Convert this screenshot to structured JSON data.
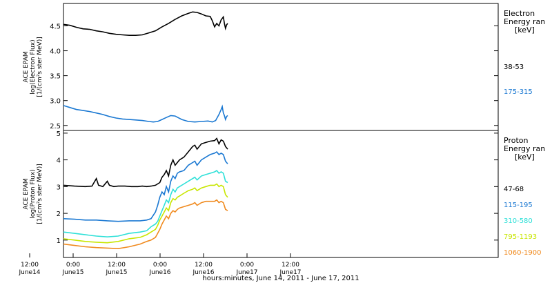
{
  "chart_data": [
    {
      "type": "line",
      "panel": "electron",
      "ylabel": [
        "ACE EPAM",
        "log(Electron Flux)",
        "[1/(cm²s ster MeV)]"
      ],
      "ylim": [
        2.4,
        4.95
      ],
      "yticks": [
        "4.5",
        "4.0",
        "3.5",
        "3.0",
        "2.5"
      ],
      "legend_title": [
        "Electron",
        "Energy ran",
        "[keV]"
      ],
      "series": [
        {
          "name": "38-53",
          "color": "#000000",
          "points": [
            [
              0,
              4.53
            ],
            [
              6,
              4.51
            ],
            [
              12,
              4.47
            ],
            [
              18,
              4.44
            ],
            [
              24,
              4.43
            ],
            [
              30,
              4.4
            ],
            [
              36,
              4.38
            ],
            [
              42,
              4.35
            ],
            [
              48,
              4.33
            ],
            [
              54,
              4.32
            ],
            [
              60,
              4.31
            ],
            [
              66,
              4.31
            ],
            [
              72,
              4.32
            ],
            [
              78,
              4.36
            ],
            [
              84,
              4.4
            ],
            [
              90,
              4.48
            ],
            [
              96,
              4.55
            ],
            [
              102,
              4.63
            ],
            [
              108,
              4.7
            ],
            [
              114,
              4.75
            ],
            [
              118,
              4.78
            ],
            [
              122,
              4.77
            ],
            [
              126,
              4.74
            ],
            [
              130,
              4.7
            ],
            [
              134,
              4.69
            ],
            [
              136,
              4.6
            ],
            [
              138,
              4.48
            ],
            [
              140,
              4.55
            ],
            [
              142,
              4.5
            ],
            [
              144,
              4.62
            ],
            [
              146,
              4.68
            ],
            [
              147,
              4.55
            ],
            [
              148,
              4.45
            ],
            [
              149,
              4.52
            ],
            [
              150,
              4.55
            ]
          ]
        },
        {
          "name": "175-315",
          "color": "#1a78d2",
          "points": [
            [
              0,
              2.9
            ],
            [
              6,
              2.86
            ],
            [
              12,
              2.82
            ],
            [
              18,
              2.8
            ],
            [
              24,
              2.78
            ],
            [
              30,
              2.75
            ],
            [
              36,
              2.72
            ],
            [
              42,
              2.68
            ],
            [
              48,
              2.65
            ],
            [
              54,
              2.63
            ],
            [
              60,
              2.62
            ],
            [
              66,
              2.61
            ],
            [
              72,
              2.6
            ],
            [
              78,
              2.58
            ],
            [
              82,
              2.57
            ],
            [
              86,
              2.58
            ],
            [
              90,
              2.62
            ],
            [
              94,
              2.66
            ],
            [
              98,
              2.7
            ],
            [
              102,
              2.69
            ],
            [
              108,
              2.62
            ],
            [
              114,
              2.58
            ],
            [
              120,
              2.57
            ],
            [
              126,
              2.58
            ],
            [
              132,
              2.59
            ],
            [
              136,
              2.57
            ],
            [
              139,
              2.6
            ],
            [
              142,
              2.72
            ],
            [
              144,
              2.82
            ],
            [
              145,
              2.88
            ],
            [
              146,
              2.75
            ],
            [
              147,
              2.7
            ],
            [
              148,
              2.62
            ],
            [
              149,
              2.68
            ],
            [
              150,
              2.7
            ]
          ]
        }
      ]
    },
    {
      "type": "line",
      "panel": "proton",
      "ylabel": [
        "ACE EPAM",
        "log(Proton Flux)",
        "[1/(cm²s ster MeV)]"
      ],
      "ylim": [
        0.35,
        5.1
      ],
      "yticks": [
        "5",
        "4",
        "3",
        "2",
        "1"
      ],
      "legend_title": [
        "Proton",
        "Energy ran",
        "[keV]"
      ],
      "series": [
        {
          "name": "47-68",
          "color": "#000000",
          "points": [
            [
              0,
              3.05
            ],
            [
              10,
              3.02
            ],
            [
              20,
              3.0
            ],
            [
              26,
              3.02
            ],
            [
              30,
              3.3
            ],
            [
              32,
              3.05
            ],
            [
              36,
              3.0
            ],
            [
              40,
              3.2
            ],
            [
              42,
              3.05
            ],
            [
              46,
              3.0
            ],
            [
              50,
              3.02
            ],
            [
              56,
              3.02
            ],
            [
              62,
              3.0
            ],
            [
              68,
              3.0
            ],
            [
              72,
              3.02
            ],
            [
              76,
              3.0
            ],
            [
              80,
              3.02
            ],
            [
              84,
              3.05
            ],
            [
              88,
              3.15
            ],
            [
              90,
              3.35
            ],
            [
              92,
              3.45
            ],
            [
              94,
              3.6
            ],
            [
              96,
              3.4
            ],
            [
              98,
              3.8
            ],
            [
              100,
              4.0
            ],
            [
              102,
              3.8
            ],
            [
              104,
              3.9
            ],
            [
              106,
              4.0
            ],
            [
              110,
              4.1
            ],
            [
              114,
              4.3
            ],
            [
              118,
              4.5
            ],
            [
              120,
              4.55
            ],
            [
              122,
              4.4
            ],
            [
              126,
              4.6
            ],
            [
              130,
              4.65
            ],
            [
              134,
              4.7
            ],
            [
              138,
              4.72
            ],
            [
              140,
              4.8
            ],
            [
              142,
              4.6
            ],
            [
              144,
              4.75
            ],
            [
              146,
              4.7
            ],
            [
              148,
              4.5
            ],
            [
              150,
              4.4
            ]
          ]
        },
        {
          "name": "115-195",
          "color": "#1a78d2",
          "points": [
            [
              0,
              1.8
            ],
            [
              10,
              1.78
            ],
            [
              20,
              1.75
            ],
            [
              30,
              1.75
            ],
            [
              40,
              1.72
            ],
            [
              50,
              1.7
            ],
            [
              60,
              1.72
            ],
            [
              70,
              1.72
            ],
            [
              76,
              1.75
            ],
            [
              80,
              1.8
            ],
            [
              84,
              2.05
            ],
            [
              86,
              2.3
            ],
            [
              88,
              2.6
            ],
            [
              90,
              2.8
            ],
            [
              92,
              2.7
            ],
            [
              94,
              3.0
            ],
            [
              96,
              2.8
            ],
            [
              98,
              3.2
            ],
            [
              100,
              3.4
            ],
            [
              102,
              3.3
            ],
            [
              104,
              3.5
            ],
            [
              106,
              3.55
            ],
            [
              110,
              3.6
            ],
            [
              114,
              3.8
            ],
            [
              118,
              3.9
            ],
            [
              120,
              3.95
            ],
            [
              122,
              3.8
            ],
            [
              126,
              4.0
            ],
            [
              130,
              4.1
            ],
            [
              134,
              4.2
            ],
            [
              138,
              4.25
            ],
            [
              140,
              4.3
            ],
            [
              142,
              4.2
            ],
            [
              144,
              4.25
            ],
            [
              146,
              4.2
            ],
            [
              148,
              3.95
            ],
            [
              150,
              3.85
            ]
          ]
        },
        {
          "name": "310-580",
          "color": "#2ee0d8",
          "points": [
            [
              0,
              1.3
            ],
            [
              10,
              1.25
            ],
            [
              20,
              1.2
            ],
            [
              30,
              1.15
            ],
            [
              40,
              1.12
            ],
            [
              50,
              1.15
            ],
            [
              60,
              1.25
            ],
            [
              70,
              1.3
            ],
            [
              76,
              1.35
            ],
            [
              80,
              1.5
            ],
            [
              84,
              1.6
            ],
            [
              86,
              1.7
            ],
            [
              88,
              1.9
            ],
            [
              90,
              2.1
            ],
            [
              92,
              2.3
            ],
            [
              94,
              2.5
            ],
            [
              96,
              2.4
            ],
            [
              98,
              2.7
            ],
            [
              100,
              2.9
            ],
            [
              102,
              2.8
            ],
            [
              104,
              2.95
            ],
            [
              106,
              3.0
            ],
            [
              110,
              3.1
            ],
            [
              114,
              3.2
            ],
            [
              118,
              3.3
            ],
            [
              120,
              3.35
            ],
            [
              122,
              3.25
            ],
            [
              126,
              3.4
            ],
            [
              130,
              3.45
            ],
            [
              134,
              3.5
            ],
            [
              138,
              3.55
            ],
            [
              140,
              3.6
            ],
            [
              142,
              3.5
            ],
            [
              144,
              3.55
            ],
            [
              146,
              3.5
            ],
            [
              148,
              3.2
            ],
            [
              150,
              3.15
            ]
          ]
        },
        {
          "name": "795-1193",
          "color": "#c8e600",
          "points": [
            [
              0,
              1.05
            ],
            [
              10,
              1.0
            ],
            [
              20,
              0.95
            ],
            [
              30,
              0.92
            ],
            [
              40,
              0.9
            ],
            [
              50,
              0.95
            ],
            [
              60,
              1.05
            ],
            [
              70,
              1.1
            ],
            [
              76,
              1.2
            ],
            [
              80,
              1.3
            ],
            [
              84,
              1.4
            ],
            [
              86,
              1.55
            ],
            [
              88,
              1.75
            ],
            [
              90,
              1.9
            ],
            [
              92,
              2.05
            ],
            [
              94,
              2.2
            ],
            [
              96,
              2.1
            ],
            [
              98,
              2.4
            ],
            [
              100,
              2.55
            ],
            [
              102,
              2.5
            ],
            [
              104,
              2.6
            ],
            [
              106,
              2.65
            ],
            [
              110,
              2.75
            ],
            [
              114,
              2.85
            ],
            [
              118,
              2.9
            ],
            [
              120,
              2.95
            ],
            [
              122,
              2.85
            ],
            [
              126,
              2.95
            ],
            [
              130,
              3.0
            ],
            [
              134,
              3.05
            ],
            [
              138,
              3.05
            ],
            [
              140,
              3.1
            ],
            [
              142,
              3.0
            ],
            [
              144,
              3.05
            ],
            [
              146,
              3.0
            ],
            [
              148,
              2.7
            ],
            [
              150,
              2.6
            ]
          ]
        },
        {
          "name": "1060-1900",
          "color": "#f08a1e",
          "points": [
            [
              0,
              0.85
            ],
            [
              10,
              0.8
            ],
            [
              20,
              0.75
            ],
            [
              30,
              0.72
            ],
            [
              40,
              0.7
            ],
            [
              50,
              0.68
            ],
            [
              60,
              0.75
            ],
            [
              70,
              0.85
            ],
            [
              76,
              0.95
            ],
            [
              80,
              1.0
            ],
            [
              84,
              1.1
            ],
            [
              86,
              1.25
            ],
            [
              88,
              1.4
            ],
            [
              90,
              1.6
            ],
            [
              92,
              1.75
            ],
            [
              94,
              1.9
            ],
            [
              96,
              1.8
            ],
            [
              98,
              2.0
            ],
            [
              100,
              2.1
            ],
            [
              102,
              2.05
            ],
            [
              104,
              2.15
            ],
            [
              106,
              2.2
            ],
            [
              110,
              2.25
            ],
            [
              114,
              2.3
            ],
            [
              118,
              2.35
            ],
            [
              120,
              2.4
            ],
            [
              122,
              2.3
            ],
            [
              126,
              2.4
            ],
            [
              130,
              2.45
            ],
            [
              134,
              2.45
            ],
            [
              138,
              2.45
            ],
            [
              140,
              2.5
            ],
            [
              142,
              2.4
            ],
            [
              144,
              2.45
            ],
            [
              146,
              2.4
            ],
            [
              148,
              2.15
            ],
            [
              150,
              2.1
            ]
          ]
        }
      ]
    }
  ],
  "x_axis": {
    "xlim_hours": [
      -16,
      164
    ],
    "xlabel": "hours:minutes, June 14, 2011 - June 17, 2011",
    "ticks": [
      {
        "x": -12,
        "time": "12:00",
        "date": "June14"
      },
      {
        "x": 0,
        "time": "0:00",
        "date": "June15"
      },
      {
        "x": 12,
        "time": "12:00",
        "date": "June15"
      },
      {
        "x": 24,
        "time": "0:00",
        "date": "June16"
      },
      {
        "x": 36,
        "time": "12:00",
        "date": "June16"
      },
      {
        "x": 48,
        "time": "0:00",
        "date": "June17"
      },
      {
        "x": 60,
        "time": "12:00",
        "date": "June17"
      }
    ]
  }
}
